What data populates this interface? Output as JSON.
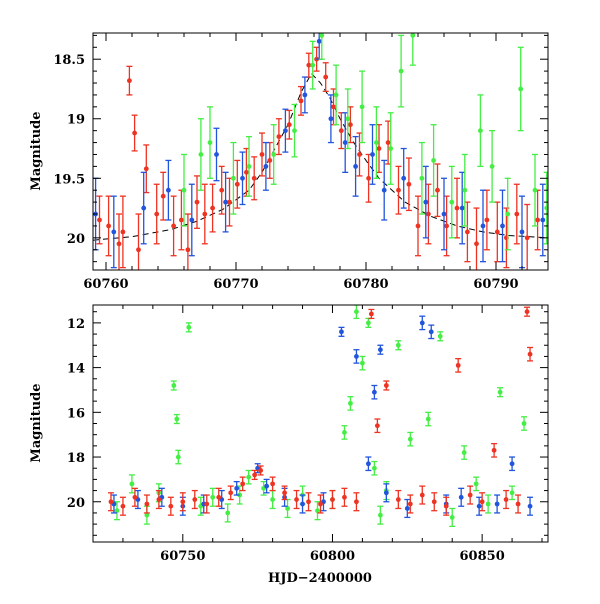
{
  "chart_data": [
    {
      "type": "scatter",
      "panel": "top",
      "xlabel": "",
      "ylabel": "Magnitude",
      "xlim": [
        60759,
        60794
      ],
      "ylim": [
        20.27,
        18.28
      ],
      "y_inverted": true,
      "x_ticks": [
        60760,
        60770,
        60780,
        60790
      ],
      "x_tick_labels": [
        "60760",
        "60770",
        "60780",
        "60790"
      ],
      "y_ticks": [
        18.5,
        19,
        19.5,
        20
      ],
      "y_tick_labels": [
        "18.5",
        "19",
        "19.5",
        "20"
      ],
      "model_curve": {
        "color": "#000000",
        "style": "dashed",
        "x": [
          60759,
          60762,
          60765,
          60767,
          60769,
          60771,
          60772,
          60773,
          60774,
          60775,
          60775.8,
          60776.5,
          60777.2,
          60778,
          60779,
          60780,
          60781,
          60783,
          60785,
          60787,
          60789,
          60791,
          60794
        ],
        "y": [
          20.02,
          19.99,
          19.93,
          19.86,
          19.76,
          19.6,
          19.45,
          19.25,
          19.05,
          18.78,
          18.62,
          18.7,
          18.82,
          19.0,
          19.19,
          19.35,
          19.5,
          19.7,
          19.82,
          19.9,
          19.95,
          19.98,
          20.0
        ]
      },
      "series": [
        {
          "name": "",
          "color": "#ee3322",
          "x": [
            60759.5,
            60760.2,
            60761.0,
            60761.3,
            60761.8,
            60762.2,
            60762.5,
            60763.1,
            60763.9,
            60764.4,
            60765.2,
            60765.8,
            60766.3,
            60767.0,
            60767.6,
            60768.2,
            60768.9,
            60769.5,
            60770.1,
            60770.8,
            60771.4,
            60772.0,
            60772.6,
            60773.3,
            60774.1,
            60775.0,
            60775.6,
            60776.2,
            60776.9,
            60777.5,
            60778.1,
            60778.8,
            60779.5,
            60780.2,
            60781.0,
            60781.7,
            60782.5,
            60783.3,
            60784.0,
            60784.8,
            60785.5,
            60786.2,
            60787.0,
            60787.8,
            60788.5,
            60789.3,
            60790.1,
            60790.8,
            60791.6,
            60792.4,
            60793.2
          ],
          "y": [
            19.85,
            19.9,
            20.05,
            19.95,
            18.68,
            19.12,
            20.1,
            19.42,
            19.8,
            19.65,
            19.9,
            19.85,
            20.1,
            19.7,
            19.8,
            19.75,
            19.6,
            19.7,
            19.55,
            19.45,
            19.5,
            19.3,
            19.35,
            19.15,
            19.05,
            18.85,
            18.55,
            18.5,
            18.65,
            18.9,
            19.1,
            19.05,
            19.3,
            19.5,
            19.25,
            19.2,
            19.6,
            19.55,
            19.9,
            19.8,
            19.6,
            19.9,
            19.75,
            19.95,
            20.05,
            19.85,
            19.95,
            20.0,
            19.8,
            20.0,
            19.85
          ],
          "yerr": [
            0.2,
            0.25,
            0.25,
            0.3,
            0.12,
            0.15,
            0.3,
            0.2,
            0.25,
            0.2,
            0.25,
            0.25,
            0.3,
            0.22,
            0.25,
            0.2,
            0.2,
            0.2,
            0.2,
            0.2,
            0.18,
            0.18,
            0.15,
            0.15,
            0.12,
            0.12,
            0.1,
            0.1,
            0.12,
            0.15,
            0.15,
            0.15,
            0.18,
            0.2,
            0.2,
            0.18,
            0.2,
            0.22,
            0.25,
            0.25,
            0.22,
            0.25,
            0.25,
            0.25,
            0.3,
            0.25,
            0.25,
            0.25,
            0.25,
            0.28,
            0.25
          ]
        },
        {
          "name": "",
          "color": "#2255dd",
          "x": [
            60759.2,
            60760.6,
            60762.9,
            60764.8,
            60766.6,
            60768.5,
            60769.2,
            60770.5,
            60772.3,
            60773.8,
            60775.3,
            60776.4,
            60777.3,
            60778.4,
            60779.2,
            60780.5,
            60781.4,
            60782.9,
            60784.6,
            60786.0,
            60787.4,
            60789.0,
            60790.5,
            60792.0,
            60793.6
          ],
          "y": [
            19.8,
            19.95,
            19.75,
            19.6,
            19.85,
            19.3,
            19.7,
            19.5,
            19.4,
            19.1,
            18.8,
            18.35,
            19.0,
            19.2,
            19.4,
            19.3,
            19.6,
            19.5,
            19.7,
            19.8,
            19.75,
            19.9,
            19.9,
            19.95,
            19.85
          ],
          "yerr": [
            0.3,
            0.3,
            0.3,
            0.25,
            0.3,
            0.22,
            0.25,
            0.22,
            0.2,
            0.18,
            0.15,
            0.15,
            0.2,
            0.25,
            0.25,
            0.25,
            0.25,
            0.25,
            0.3,
            0.3,
            0.3,
            0.3,
            0.3,
            0.3,
            0.3
          ]
        },
        {
          "name": "",
          "color": "#44ee44",
          "x": [
            60766.0,
            60767.3,
            60768.0,
            60769.8,
            60771.0,
            60772.9,
            60774.5,
            60775.9,
            60776.6,
            60777.7,
            60778.6,
            60779.7,
            60780.8,
            60781.9,
            60782.7,
            60783.6,
            60784.3,
            60785.2,
            60786.6,
            60787.6,
            60788.8,
            60789.7,
            60790.9,
            60791.9,
            60793.0,
            60793.9
          ],
          "y": [
            19.6,
            19.3,
            19.2,
            19.5,
            19.4,
            19.3,
            19.1,
            18.55,
            18.3,
            18.8,
            19.0,
            18.9,
            19.2,
            19.25,
            18.6,
            18.3,
            19.5,
            19.35,
            19.7,
            19.6,
            19.1,
            19.4,
            19.8,
            18.75,
            19.6,
            19.75
          ],
          "yerr": [
            0.3,
            0.3,
            0.3,
            0.3,
            0.25,
            0.25,
            0.22,
            0.2,
            0.2,
            0.25,
            0.25,
            0.3,
            0.3,
            0.3,
            0.3,
            0.25,
            0.3,
            0.3,
            0.3,
            0.3,
            0.3,
            0.3,
            0.3,
            0.35,
            0.3,
            0.3
          ]
        }
      ]
    },
    {
      "type": "scatter",
      "panel": "bottom",
      "xlabel": "HJD−2400000",
      "ylabel": "Magnitude",
      "xlim": [
        60720,
        60872
      ],
      "ylim": [
        21.8,
        11.2
      ],
      "y_inverted": true,
      "x_ticks": [
        60750,
        60800,
        60850
      ],
      "x_tick_labels": [
        "60750",
        "60800",
        "60850"
      ],
      "y_ticks": [
        12,
        14,
        16,
        18,
        20
      ],
      "y_tick_labels": [
        "12",
        "14",
        "16",
        "18",
        "20"
      ],
      "series": [
        {
          "name": "",
          "color": "#44ee44",
          "x": [
            60728,
            60733,
            60738,
            60742,
            60747,
            60748,
            60748.5,
            60752,
            60756,
            60760,
            60765,
            60769,
            60772,
            60777,
            60780,
            60785,
            60790,
            60795,
            60800,
            60804,
            60806,
            60808,
            60810,
            60812,
            60814,
            60816,
            60818,
            60822,
            60826,
            60832,
            60836,
            60840,
            60844,
            60848,
            60852,
            60856,
            60860,
            60864
          ],
          "y": [
            20.4,
            19.2,
            20.6,
            19.6,
            14.8,
            16.3,
            18.0,
            12.2,
            20.2,
            19.8,
            20.5,
            19.7,
            18.9,
            19.4,
            19.9,
            20.3,
            19.7,
            20.4,
            19.9,
            16.9,
            15.6,
            11.5,
            13.8,
            12.0,
            18.5,
            20.6,
            19.5,
            13.0,
            17.2,
            16.3,
            12.6,
            20.7,
            17.8,
            19.2,
            20.1,
            15.1,
            19.6,
            16.5
          ],
          "yerr": [
            0.4,
            0.4,
            0.4,
            0.4,
            0.2,
            0.2,
            0.3,
            0.2,
            0.4,
            0.4,
            0.4,
            0.4,
            0.3,
            0.3,
            0.4,
            0.4,
            0.4,
            0.4,
            0.4,
            0.3,
            0.3,
            0.3,
            0.3,
            0.2,
            0.3,
            0.4,
            0.4,
            0.2,
            0.3,
            0.3,
            0.2,
            0.4,
            0.3,
            0.3,
            0.4,
            0.2,
            0.3,
            0.3
          ]
        },
        {
          "name": "",
          "color": "#2255dd",
          "x": [
            60727,
            60735,
            60743,
            60750,
            60757,
            60763,
            60768,
            60775,
            60778,
            60784,
            60790,
            60797,
            60803,
            60808,
            60812,
            60814,
            60816,
            60818,
            60825,
            60830,
            60833,
            60838,
            60843,
            60849,
            60855,
            60860,
            60866
          ],
          "y": [
            20.1,
            19.9,
            19.8,
            20.2,
            20.1,
            19.9,
            19.4,
            18.5,
            19.3,
            19.8,
            20.1,
            20.0,
            12.4,
            13.5,
            18.3,
            15.1,
            13.2,
            19.6,
            20.3,
            12.0,
            12.4,
            20.1,
            19.8,
            20.2,
            20.1,
            18.3,
            20.2
          ],
          "yerr": [
            0.4,
            0.4,
            0.4,
            0.4,
            0.4,
            0.4,
            0.3,
            0.2,
            0.3,
            0.4,
            0.4,
            0.4,
            0.2,
            0.3,
            0.3,
            0.3,
            0.2,
            0.4,
            0.4,
            0.3,
            0.3,
            0.4,
            0.4,
            0.4,
            0.4,
            0.3,
            0.4
          ]
        },
        {
          "name": "",
          "color": "#ee3322",
          "x": [
            60726,
            60730,
            60734,
            60738,
            60742,
            60746,
            60750,
            60754,
            60758,
            60762,
            60766,
            60770,
            60774,
            60776,
            60780,
            60784,
            60788,
            60792,
            60796,
            60800,
            60804,
            60808,
            60813,
            60815,
            60818,
            60822,
            60826,
            60830,
            60834,
            60838,
            60842,
            60846,
            60850,
            60854,
            60858,
            60862,
            60865,
            60866
          ],
          "y": [
            20.0,
            20.2,
            19.8,
            20.1,
            19.9,
            20.2,
            20.0,
            19.9,
            20.1,
            19.8,
            19.6,
            19.2,
            18.8,
            18.6,
            19.2,
            19.6,
            19.9,
            20.0,
            20.1,
            19.9,
            19.8,
            20.0,
            11.6,
            16.6,
            14.8,
            19.9,
            20.1,
            19.7,
            20.0,
            20.2,
            13.9,
            19.7,
            20.0,
            17.7,
            19.9,
            20.1,
            11.5,
            13.4
          ],
          "yerr": [
            0.4,
            0.4,
            0.4,
            0.4,
            0.4,
            0.4,
            0.4,
            0.4,
            0.4,
            0.4,
            0.3,
            0.3,
            0.2,
            0.2,
            0.3,
            0.3,
            0.4,
            0.4,
            0.4,
            0.4,
            0.4,
            0.4,
            0.2,
            0.3,
            0.2,
            0.4,
            0.4,
            0.4,
            0.4,
            0.4,
            0.3,
            0.4,
            0.4,
            0.3,
            0.4,
            0.4,
            0.2,
            0.3
          ]
        }
      ]
    }
  ]
}
